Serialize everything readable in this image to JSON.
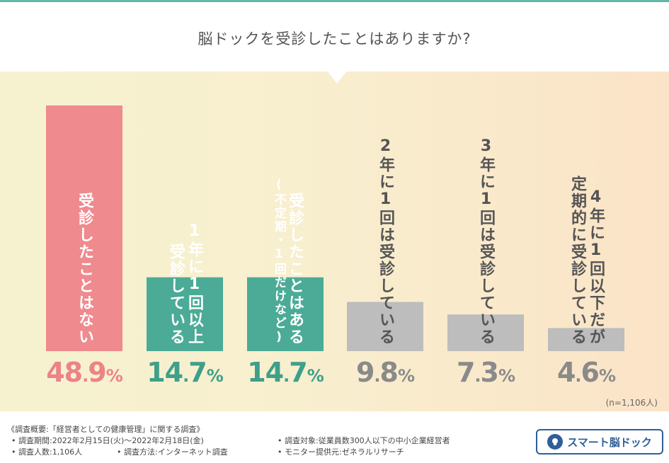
{
  "title": "脳ドックを受診したことはありますか?",
  "chart_data": {
    "type": "bar",
    "categories": [
      "受診したことはない",
      "1年に1回以上受診している",
      "受診したことはある(不定期・1回だけなど)",
      "2年に1回は受診している",
      "3年に1回は受診している",
      "4年に1回以下だが定期的に受診している"
    ],
    "values": [
      48.9,
      14.7,
      14.7,
      9.8,
      7.3,
      4.6
    ],
    "value_labels": [
      "48.9%",
      "14.7%",
      "14.7%",
      "9.8%",
      "7.3%",
      "4.6%"
    ],
    "colors": [
      "#ef8a8e",
      "#4bab96",
      "#4bab96",
      "#bdbdbd",
      "#bdbdbd",
      "#bdbdbd"
    ],
    "pct_colors": [
      "#ec8388",
      "#3f9f8a",
      "#3f9f8a",
      "#8a8a8a",
      "#8a8a8a",
      "#8a8a8a"
    ],
    "bar_label_lines": [
      [
        "受診したことはない"
      ],
      [
        "1年に1回以上",
        "受診している"
      ],
      [
        "受診したことはある",
        "(不定期・1回だけなど)"
      ],
      [
        "2年に1回は受診している"
      ],
      [
        "3年に1回は受診している"
      ],
      [
        "4年に1回以下だが",
        "定期的に受診している"
      ]
    ],
    "ylim": [
      0,
      48.9
    ],
    "grid": false,
    "legend": "none",
    "sample_note": "(n=1,106人)"
  },
  "footer": {
    "survey_outline": "《調査概要:「経営者としての健康管理」に関する調査》",
    "period": "• 調査期間:2022年2月15日(火)〜2022年2月18日(金)",
    "target": "• 調査対象:従業員数300人以下の中小企業経営者",
    "respondents": "• 調査人数:1,106人",
    "method": "• 調査方法:インターネット調査",
    "provider": "• モニター提供元:ゼネラルリサーチ"
  },
  "logo": {
    "text": "スマート脳ドック",
    "icon": "brain-icon"
  }
}
